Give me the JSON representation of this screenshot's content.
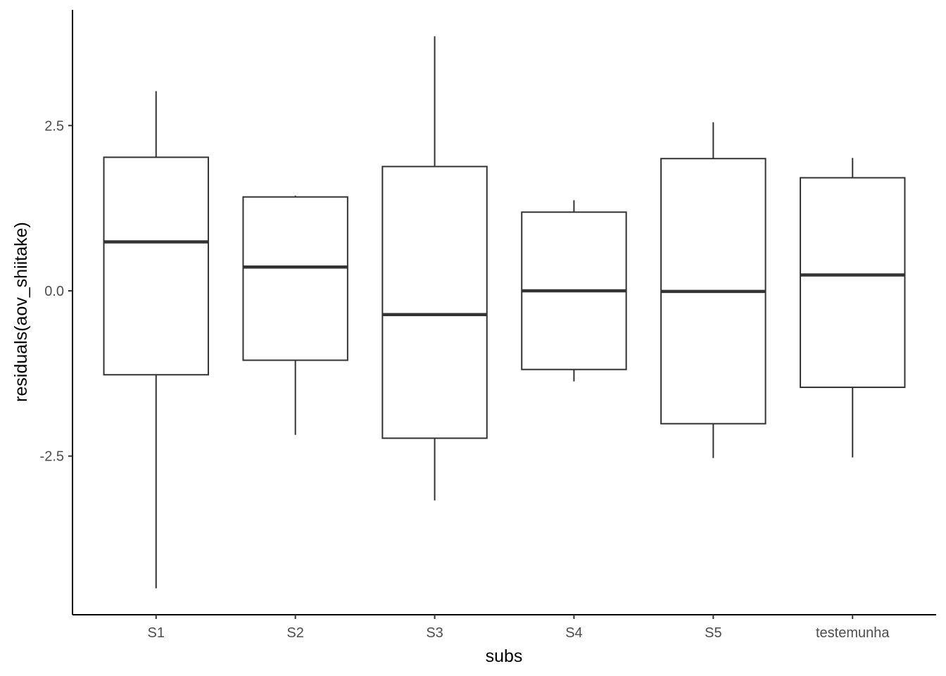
{
  "chart_data": {
    "type": "boxplot",
    "title": "",
    "xlabel": "subs",
    "ylabel": "residuals(aov_shiitake)",
    "ylim": [
      -4.9,
      4.25
    ],
    "yticks": [
      -2.5,
      0.0,
      2.5
    ],
    "ytick_labels": [
      "-2.5",
      "0.0",
      "2.5"
    ],
    "grid": false,
    "legend": "none",
    "colors": {
      "box_stroke": "#333333",
      "box_fill": "#ffffff",
      "axis": "#000000",
      "tick_text": "#4d4d4d"
    },
    "categories": [
      "S1",
      "S2",
      "S3",
      "S4",
      "S5",
      "testemunha"
    ],
    "boxes": [
      {
        "category": "S1",
        "whisker_low": -4.5,
        "q1": -1.27,
        "median": 0.74,
        "q3": 2.02,
        "whisker_high": 3.02
      },
      {
        "category": "S2",
        "whisker_low": -2.18,
        "q1": -1.05,
        "median": 0.36,
        "q3": 1.42,
        "whisker_high": 1.44
      },
      {
        "category": "S3",
        "whisker_low": -3.17,
        "q1": -2.23,
        "median": -0.36,
        "q3": 1.88,
        "whisker_high": 3.85
      },
      {
        "category": "S4",
        "whisker_low": -1.37,
        "q1": -1.19,
        "median": 0.0,
        "q3": 1.19,
        "whisker_high": 1.37
      },
      {
        "category": "S5",
        "whisker_low": -2.53,
        "q1": -2.01,
        "median": -0.01,
        "q3": 2.0,
        "whisker_high": 2.55
      },
      {
        "category": "testemunha",
        "whisker_low": -2.52,
        "q1": -1.46,
        "median": 0.24,
        "q3": 1.71,
        "whisker_high": 2.01
      }
    ]
  }
}
